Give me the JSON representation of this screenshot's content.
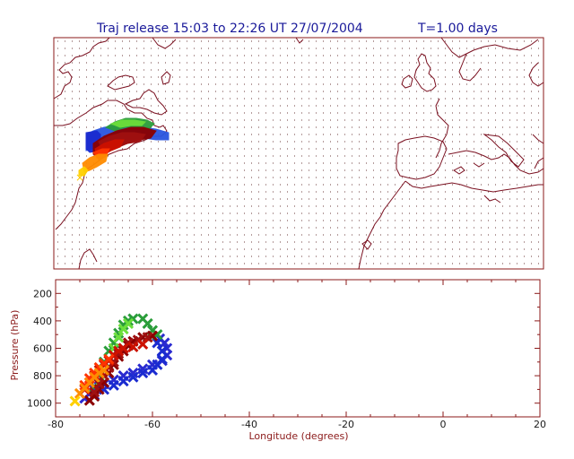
{
  "title": "Traj release 15:03 to 22:26 UT 27/07/2004",
  "time_label": "T=1.00 days",
  "colors": {
    "frame": "#8b1a1a",
    "title": "#1a1a9a",
    "coast": "#7a1020",
    "grid_dots": "#6b3a3a",
    "release_marker": "#ffcc00"
  },
  "chart_data": [
    {
      "type": "map",
      "name": "trajectory-map",
      "lon_range": [
        -80,
        20
      ],
      "lat_range": [
        20,
        70
      ],
      "grid_dots": true,
      "trajectory_colors_order": [
        "#ffd000",
        "#ff8c00",
        "#ff3300",
        "#cc1100",
        "#a01010",
        "#8b0000",
        "#2a9d3a",
        "#6cdf3a",
        "#1a2bd0",
        "#2a55e0"
      ]
    },
    {
      "type": "scatter",
      "name": "pressure-longitude",
      "xlabel": "Longitude  (degrees)",
      "ylabel": "Pressure  (hPa)",
      "xlim": [
        -80,
        20
      ],
      "ylim": [
        1100,
        100
      ],
      "x_ticks": [
        "-80",
        "-60",
        "-40",
        "-20",
        "0",
        "20"
      ],
      "y_ticks": [
        "200",
        "400",
        "600",
        "800",
        "1000"
      ],
      "series": [
        {
          "color": "#2a2ad0",
          "points": [
            [
              -74,
              965
            ],
            [
              -73,
              930
            ],
            [
              -72,
              900
            ],
            [
              -71,
              880
            ],
            [
              -70,
              860
            ],
            [
              -68,
              830
            ],
            [
              -66,
              800
            ],
            [
              -64,
              780
            ],
            [
              -62,
              750
            ],
            [
              -60,
              720
            ],
            [
              -58,
              690
            ],
            [
              -57,
              650
            ],
            [
              -57,
              600
            ],
            [
              -57.5,
              560
            ],
            [
              -58.5,
              530
            ]
          ]
        },
        {
          "color": "#1a2bd0",
          "points": [
            [
              -72,
              940
            ],
            [
              -70,
              900
            ],
            [
              -68,
              870
            ],
            [
              -66,
              840
            ],
            [
              -64,
              810
            ],
            [
              -62,
              780
            ],
            [
              -60,
              760
            ],
            [
              -59,
              720
            ],
            [
              -58,
              680
            ],
            [
              -58,
              620
            ],
            [
              -59,
              560
            ]
          ]
        },
        {
          "color": "#2a9d3a",
          "points": [
            [
              -72,
              880
            ],
            [
              -71,
              800
            ],
            [
              -70,
              700
            ],
            [
              -69,
              620
            ],
            [
              -68,
              560
            ],
            [
              -67,
              490
            ],
            [
              -66,
              430
            ],
            [
              -65,
              400
            ],
            [
              -64,
              385
            ],
            [
              -62,
              385
            ],
            [
              -61,
              420
            ],
            [
              -60,
              470
            ],
            [
              -59,
              500
            ]
          ]
        },
        {
          "color": "#6cdf3a",
          "points": [
            [
              -71,
              850
            ],
            [
              -70,
              760
            ],
            [
              -69,
              680
            ],
            [
              -68,
              600
            ],
            [
              -67,
              520
            ],
            [
              -66,
              460
            ],
            [
              -65,
              420
            ]
          ]
        },
        {
          "color": "#8b0000",
          "points": [
            [
              -73,
              980
            ],
            [
              -72,
              950
            ],
            [
              -71,
              900
            ],
            [
              -70,
              850
            ],
            [
              -69,
              780
            ],
            [
              -68,
              720
            ],
            [
              -67,
              660
            ],
            [
              -66,
              620
            ],
            [
              -65,
              580
            ],
            [
              -64,
              550
            ],
            [
              -62,
              520
            ],
            [
              -60,
              510
            ]
          ]
        },
        {
          "color": "#a01010",
          "points": [
            [
              -72,
              920
            ],
            [
              -71,
              860
            ],
            [
              -70,
              800
            ],
            [
              -69,
              740
            ],
            [
              -68,
              700
            ],
            [
              -67,
              640
            ],
            [
              -66,
              600
            ],
            [
              -65,
              560
            ],
            [
              -63,
              540
            ],
            [
              -61,
              520
            ]
          ]
        },
        {
          "color": "#cc1100",
          "points": [
            [
              -74,
              900
            ],
            [
              -73,
              850
            ],
            [
              -72,
              800
            ],
            [
              -71,
              760
            ],
            [
              -70,
              720
            ],
            [
              -69,
              690
            ],
            [
              -68,
              650
            ],
            [
              -67,
              620
            ],
            [
              -66,
              600
            ],
            [
              -64,
              590
            ],
            [
              -62,
              570
            ]
          ]
        },
        {
          "color": "#ff3300",
          "points": [
            [
              -74,
              870
            ],
            [
              -73,
              820
            ],
            [
              -72,
              780
            ],
            [
              -71,
              740
            ],
            [
              -70,
              710
            ],
            [
              -69,
              680
            ]
          ]
        },
        {
          "color": "#ff8c00",
          "points": [
            [
              -75,
              930
            ],
            [
              -74,
              890
            ],
            [
              -73,
              850
            ],
            [
              -72,
              810
            ],
            [
              -71,
              780
            ],
            [
              -70,
              760
            ]
          ]
        },
        {
          "color": "#ffd000",
          "points": [
            [
              -76,
              985
            ]
          ]
        }
      ]
    }
  ]
}
